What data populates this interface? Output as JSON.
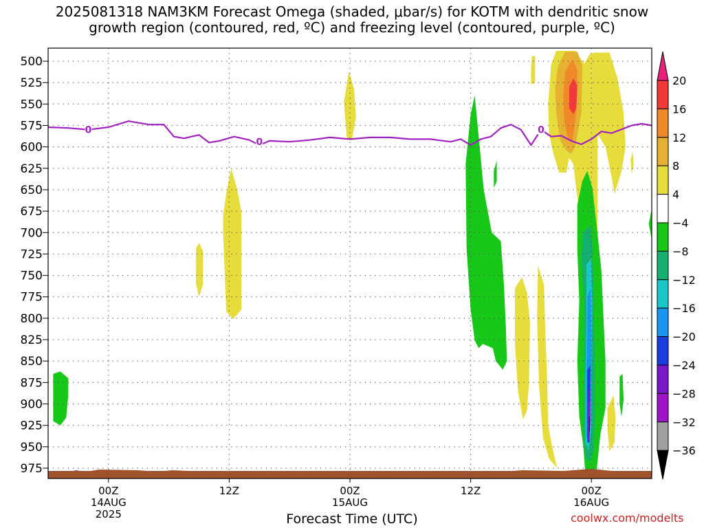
{
  "title_line1": "2025081318 NAM3KM Forecast Omega (shaded, μbar/s) for KOTM with dendritic snow",
  "title_line2": "growth region (contoured, red, ºC) and freezing level (contoured, purple, ºC)",
  "credit": "coolwx.com/modelts",
  "chart_data": {
    "type": "heatmap",
    "title": "2025081318 NAM3KM Forecast Omega (shaded, μbar/s) for KOTM with dendritic snow growth region (contoured, red, ºC) and freezing level (contoured, purple, ºC)",
    "xlabel": "Forecast Time (UTC)",
    "ylabel": "",
    "x_ticks": [
      {
        "hour": 6,
        "label1": "00Z",
        "label2": "14AUG",
        "label3": "2025"
      },
      {
        "hour": 18,
        "label1": "12Z",
        "label2": "",
        "label3": ""
      },
      {
        "hour": 30,
        "label1": "00Z",
        "label2": "15AUG",
        "label3": ""
      },
      {
        "hour": 42,
        "label1": "12Z",
        "label2": "",
        "label3": ""
      },
      {
        "hour": 54,
        "label1": "00Z",
        "label2": "16AUG",
        "label3": ""
      }
    ],
    "x_range_hours": [
      0,
      60
    ],
    "y_ticks": [
      500,
      525,
      550,
      575,
      600,
      625,
      650,
      675,
      700,
      725,
      750,
      775,
      800,
      825,
      850,
      875,
      900,
      925,
      950,
      975
    ],
    "y_range_mb": [
      490,
      982
    ],
    "grid": true,
    "colorbar": {
      "labels": [
        "20",
        "16",
        "12",
        "8",
        "4",
        "−4",
        "−8",
        "−12",
        "−16",
        "−20",
        "−24",
        "−28",
        "−32",
        "−36"
      ],
      "colors": [
        "#e8207a",
        "#f03a3a",
        "#f08a28",
        "#e6b030",
        "#e6dc3c",
        "#ffffff",
        "#18c818",
        "#14b070",
        "#18c8c8",
        "#1896f0",
        "#1a3ce0",
        "#7818c8",
        "#a014c8",
        "#a0a0a0",
        "#000000"
      ]
    },
    "freezing_level": {
      "label": "0",
      "points": [
        [
          0,
          577
        ],
        [
          2,
          578
        ],
        [
          4,
          580
        ],
        [
          6,
          577
        ],
        [
          8,
          570
        ],
        [
          10,
          574
        ],
        [
          11.5,
          574
        ],
        [
          12.5,
          588
        ],
        [
          13.5,
          590
        ],
        [
          15,
          586
        ],
        [
          16,
          595
        ],
        [
          17,
          593
        ],
        [
          18.5,
          588
        ],
        [
          20,
          592
        ],
        [
          21,
          598
        ],
        [
          22,
          593
        ],
        [
          24,
          594
        ],
        [
          26,
          592
        ],
        [
          28,
          589
        ],
        [
          30,
          591
        ],
        [
          32,
          589
        ],
        [
          34,
          589
        ],
        [
          36,
          591
        ],
        [
          38,
          591
        ],
        [
          40,
          594
        ],
        [
          41,
          591
        ],
        [
          42,
          598
        ],
        [
          43,
          591
        ],
        [
          44,
          588
        ],
        [
          45,
          578
        ],
        [
          46,
          574
        ],
        [
          47,
          580
        ],
        [
          48,
          598
        ],
        [
          49,
          580
        ],
        [
          50,
          588
        ],
        [
          51,
          587
        ],
        [
          52,
          593
        ],
        [
          53,
          597
        ],
        [
          54,
          591
        ],
        [
          55,
          582
        ],
        [
          56,
          584
        ],
        [
          58,
          575
        ],
        [
          59,
          573
        ],
        [
          60,
          575
        ]
      ],
      "label_positions": [
        [
          4,
          580
        ],
        [
          21,
          594
        ],
        [
          49,
          580
        ]
      ]
    },
    "omega_regions": [
      {
        "level": "-8",
        "poly": [
          [
            0.5,
            865
          ],
          [
            1.2,
            862
          ],
          [
            2.0,
            870
          ],
          [
            2.0,
            890
          ],
          [
            1.8,
            916
          ],
          [
            1.2,
            925
          ],
          [
            0.5,
            920
          ]
        ]
      },
      {
        "level": "4",
        "poly": [
          [
            14.7,
            718
          ],
          [
            15.0,
            712
          ],
          [
            15.4,
            722
          ],
          [
            15.4,
            760
          ],
          [
            15.0,
            775
          ],
          [
            14.7,
            760
          ]
        ]
      },
      {
        "level": "4",
        "poly": [
          [
            17.4,
            680
          ],
          [
            17.7,
            655
          ],
          [
            18.2,
            625
          ],
          [
            18.8,
            650
          ],
          [
            19.2,
            675
          ],
          [
            19.2,
            790
          ],
          [
            18.4,
            801
          ],
          [
            17.7,
            792
          ],
          [
            17.4,
            700
          ]
        ]
      },
      {
        "level": "4",
        "poly": [
          [
            29.4,
            548
          ],
          [
            29.9,
            512
          ],
          [
            30.4,
            532
          ],
          [
            30.6,
            565
          ],
          [
            30.2,
            592
          ],
          [
            29.7,
            591
          ]
        ]
      },
      {
        "level": "4",
        "poly": [
          [
            48.1,
            494
          ],
          [
            48.4,
            494
          ],
          [
            48.4,
            525
          ],
          [
            48.0,
            527
          ],
          [
            48.0,
            508
          ]
        ]
      },
      {
        "level": "-8",
        "poly": [
          [
            41.5,
            620
          ],
          [
            42.0,
            562
          ],
          [
            42.4,
            540
          ],
          [
            42.8,
            588
          ],
          [
            43.3,
            650
          ],
          [
            44.1,
            700
          ],
          [
            45.0,
            710
          ],
          [
            45.3,
            760
          ],
          [
            45.5,
            810
          ],
          [
            45.6,
            850
          ],
          [
            45.2,
            860
          ],
          [
            44.5,
            850
          ],
          [
            44.2,
            835
          ],
          [
            43.2,
            830
          ],
          [
            42.8,
            835
          ],
          [
            42.4,
            826
          ],
          [
            42.0,
            790
          ],
          [
            41.6,
            720
          ]
        ]
      },
      {
        "level": "4",
        "poly": [
          [
            46.4,
            765
          ],
          [
            47.1,
            752
          ],
          [
            47.6,
            770
          ],
          [
            47.9,
            805
          ],
          [
            47.8,
            875
          ],
          [
            47.6,
            908
          ],
          [
            47.2,
            918
          ],
          [
            46.7,
            885
          ],
          [
            46.4,
            830
          ]
        ]
      },
      {
        "level": "4",
        "poly": [
          [
            48.7,
            738
          ],
          [
            49.3,
            762
          ],
          [
            49.4,
            810
          ],
          [
            49.6,
            870
          ],
          [
            49.7,
            925
          ],
          [
            50.1,
            950
          ],
          [
            50.6,
            975
          ],
          [
            49.8,
            964
          ],
          [
            49.2,
            940
          ],
          [
            48.8,
            880
          ],
          [
            48.6,
            800
          ]
        ]
      },
      {
        "level": "4",
        "poly": [
          [
            50.0,
            504
          ],
          [
            50.5,
            488
          ],
          [
            51.5,
            488
          ],
          [
            52.4,
            488
          ],
          [
            53.3,
            503
          ],
          [
            53.8,
            492
          ],
          [
            54.3,
            490
          ],
          [
            55.8,
            490
          ],
          [
            56.6,
            520
          ],
          [
            57.2,
            560
          ],
          [
            57.4,
            600
          ],
          [
            57.0,
            628
          ],
          [
            56.3,
            655
          ],
          [
            56.0,
            635
          ],
          [
            55.4,
            600
          ],
          [
            54.6,
            585
          ],
          [
            54.6,
            700
          ],
          [
            53.2,
            710
          ],
          [
            52.5,
            650
          ],
          [
            52.2,
            620
          ],
          [
            51.8,
            613
          ],
          [
            51.5,
            630
          ],
          [
            50.8,
            630
          ],
          [
            50.2,
            607
          ],
          [
            49.8,
            585
          ],
          [
            49.7,
            550
          ],
          [
            49.9,
            520
          ]
        ]
      },
      {
        "level": "8",
        "poly": [
          [
            50.7,
            505
          ],
          [
            51.4,
            489
          ],
          [
            52.6,
            489
          ],
          [
            53.1,
            505
          ],
          [
            53.0,
            560
          ],
          [
            52.4,
            600
          ],
          [
            52.0,
            608
          ],
          [
            51.5,
            604
          ],
          [
            50.9,
            592
          ],
          [
            50.5,
            560
          ],
          [
            50.4,
            530
          ]
        ]
      },
      {
        "level": "12",
        "poly": [
          [
            51.4,
            512
          ],
          [
            52.1,
            498
          ],
          [
            52.6,
            510
          ],
          [
            52.5,
            560
          ],
          [
            52.1,
            595
          ],
          [
            51.7,
            592
          ],
          [
            51.3,
            570
          ],
          [
            51.2,
            540
          ]
        ]
      },
      {
        "level": "16",
        "poly": [
          [
            51.8,
            530
          ],
          [
            52.2,
            520
          ],
          [
            52.6,
            528
          ],
          [
            52.5,
            555
          ],
          [
            52.2,
            562
          ],
          [
            51.8,
            555
          ]
        ]
      },
      {
        "level": "-8",
        "poly": [
          [
            52.6,
            668
          ],
          [
            53.1,
            640
          ],
          [
            53.6,
            628
          ],
          [
            54.1,
            648
          ],
          [
            54.6,
            700
          ],
          [
            55.0,
            745
          ],
          [
            55.2,
            800
          ],
          [
            55.4,
            850
          ],
          [
            55.4,
            905
          ],
          [
            54.9,
            935
          ],
          [
            54.5,
            980
          ],
          [
            53.4,
            982
          ],
          [
            53.2,
            950
          ],
          [
            52.8,
            915
          ],
          [
            52.6,
            850
          ],
          [
            52.8,
            780
          ],
          [
            52.6,
            720
          ]
        ]
      },
      {
        "level": "-12",
        "poly": [
          [
            53.2,
            700
          ],
          [
            53.9,
            692
          ],
          [
            54.1,
            720
          ],
          [
            54.2,
            765
          ],
          [
            54.3,
            830
          ],
          [
            54.4,
            900
          ],
          [
            54.2,
            955
          ],
          [
            53.8,
            968
          ],
          [
            53.4,
            962
          ],
          [
            53.2,
            930
          ],
          [
            53.3,
            860
          ],
          [
            53.3,
            780
          ],
          [
            53.0,
            730
          ]
        ]
      },
      {
        "level": "-16",
        "poly": [
          [
            53.5,
            738
          ],
          [
            54.0,
            730
          ],
          [
            54.1,
            790
          ],
          [
            54.0,
            870
          ],
          [
            54.0,
            930
          ],
          [
            53.7,
            955
          ],
          [
            53.4,
            945
          ],
          [
            53.4,
            880
          ],
          [
            53.5,
            800
          ]
        ]
      },
      {
        "level": "-20",
        "poly": [
          [
            53.6,
            775
          ],
          [
            53.9,
            765
          ],
          [
            54.0,
            830
          ],
          [
            53.9,
            900
          ],
          [
            53.8,
            940
          ],
          [
            53.5,
            940
          ],
          [
            53.5,
            870
          ],
          [
            53.6,
            820
          ]
        ]
      },
      {
        "level": "-24",
        "poly": [
          [
            53.6,
            860
          ],
          [
            53.9,
            855
          ],
          [
            53.9,
            910
          ],
          [
            53.8,
            945
          ],
          [
            53.6,
            945
          ],
          [
            53.6,
            900
          ]
        ]
      },
      {
        "level": "-28",
        "poly": [
          [
            53.65,
            885
          ],
          [
            53.85,
            880
          ],
          [
            53.9,
            920
          ],
          [
            53.8,
            945
          ],
          [
            53.65,
            940
          ]
        ]
      },
      {
        "level": "-32",
        "poly": [
          [
            53.7,
            900
          ],
          [
            53.85,
            897
          ],
          [
            53.85,
            930
          ],
          [
            53.75,
            940
          ],
          [
            53.7,
            925
          ]
        ]
      },
      {
        "level": "-36",
        "poly": [
          [
            53.77,
            915
          ],
          [
            53.82,
            915
          ],
          [
            53.82,
            932
          ],
          [
            53.77,
            932
          ]
        ]
      },
      {
        "level": "4",
        "poly": [
          [
            55.6,
            905
          ],
          [
            56.2,
            890
          ],
          [
            56.4,
            915
          ],
          [
            56.3,
            945
          ],
          [
            55.8,
            955
          ],
          [
            55.6,
            930
          ]
        ]
      },
      {
        "level": "-8",
        "poly": [
          [
            56.8,
            868
          ],
          [
            57.1,
            865
          ],
          [
            57.2,
            895
          ],
          [
            57.0,
            915
          ],
          [
            56.8,
            900
          ]
        ]
      },
      {
        "level": "-8",
        "poly": [
          [
            59.7,
            690
          ],
          [
            60.0,
            672
          ],
          [
            60.0,
            708
          ]
        ]
      },
      {
        "level": "4",
        "poly": [
          [
            57.9,
            615
          ],
          [
            58.1,
            605
          ],
          [
            58.2,
            620
          ],
          [
            58.0,
            632
          ]
        ]
      },
      {
        "level": "-8",
        "poly": [
          [
            44.3,
            628
          ],
          [
            44.6,
            616
          ],
          [
            44.6,
            640
          ],
          [
            44.3,
            648
          ]
        ]
      },
      {
        "level": "4",
        "poly": [
          [
            56.7,
            602
          ],
          [
            57.0,
            598
          ],
          [
            57.0,
            612
          ],
          [
            56.7,
            614
          ]
        ]
      }
    ]
  }
}
